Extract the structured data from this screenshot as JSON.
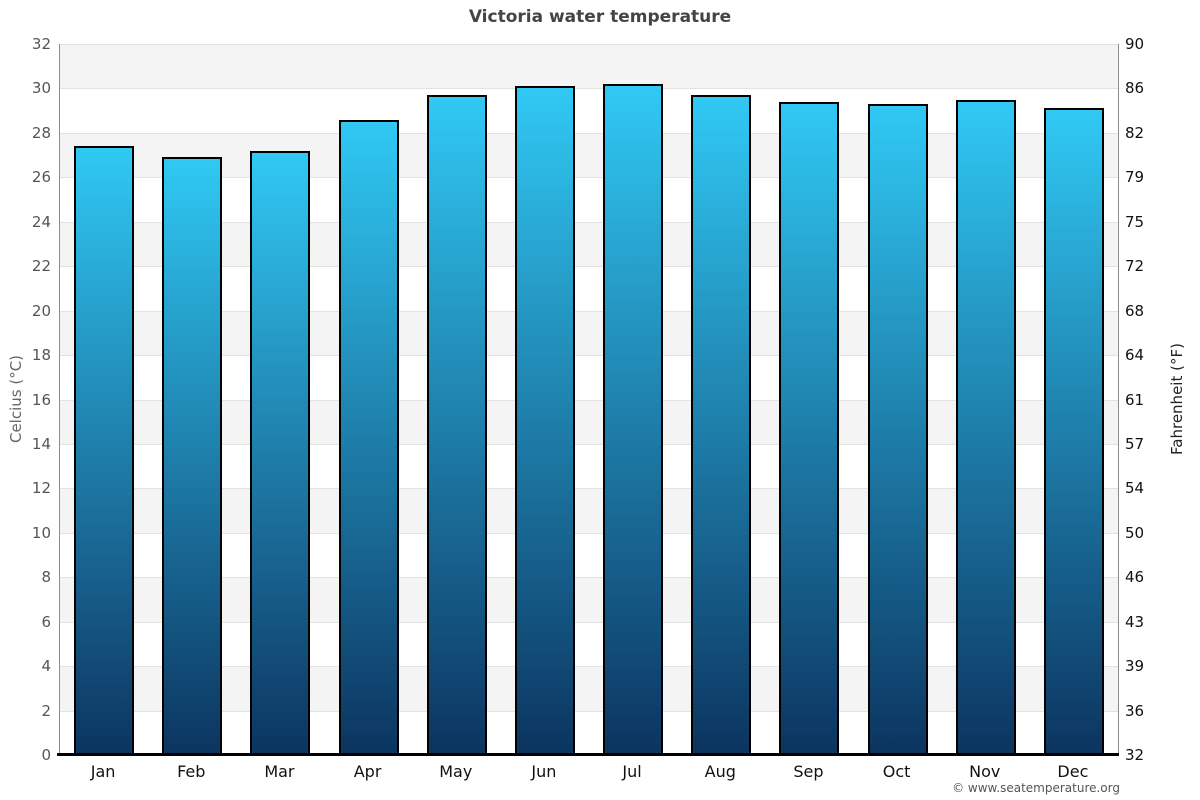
{
  "chart_data": {
    "type": "bar",
    "title": "Victoria water temperature",
    "categories": [
      "Jan",
      "Feb",
      "Mar",
      "Apr",
      "May",
      "Jun",
      "Jul",
      "Aug",
      "Sep",
      "Oct",
      "Nov",
      "Dec"
    ],
    "values": [
      27.4,
      26.9,
      27.2,
      28.6,
      29.7,
      30.1,
      30.2,
      29.7,
      29.4,
      29.3,
      29.5,
      29.1
    ],
    "unit": "°C",
    "ylabel_left": "Celcius (°C)",
    "ylabel_right": "Fahrenheit (°F)",
    "ylim": [
      0,
      32
    ],
    "yticks_celsius": [
      0,
      2,
      4,
      6,
      8,
      10,
      12,
      14,
      16,
      18,
      20,
      22,
      24,
      26,
      28,
      30,
      32
    ],
    "yticks_fahrenheit": [
      "32",
      "36",
      "39",
      "43",
      "46",
      "50",
      "54",
      "57",
      "61",
      "64",
      "68",
      "72",
      "75",
      "79",
      "82",
      "86",
      "90"
    ],
    "grid": "horizontal bands every 2°C, alternating fill",
    "legend": "none",
    "footer": "© www.seatemperature.org",
    "colors": {
      "bar_gradient_top": "#30c9f4",
      "bar_gradient_bottom": "#0c3460",
      "bar_border": "#000000",
      "band_gray": "#f4f4f4",
      "band_white": "#ffffff",
      "gridline": "#e2e2e2",
      "axis_line": "#8c8c8c",
      "baseline": "#000000",
      "title_text": "#444444",
      "left_tick_text": "#555555",
      "right_tick_text": "#111111",
      "footer_text": "#555555"
    }
  }
}
